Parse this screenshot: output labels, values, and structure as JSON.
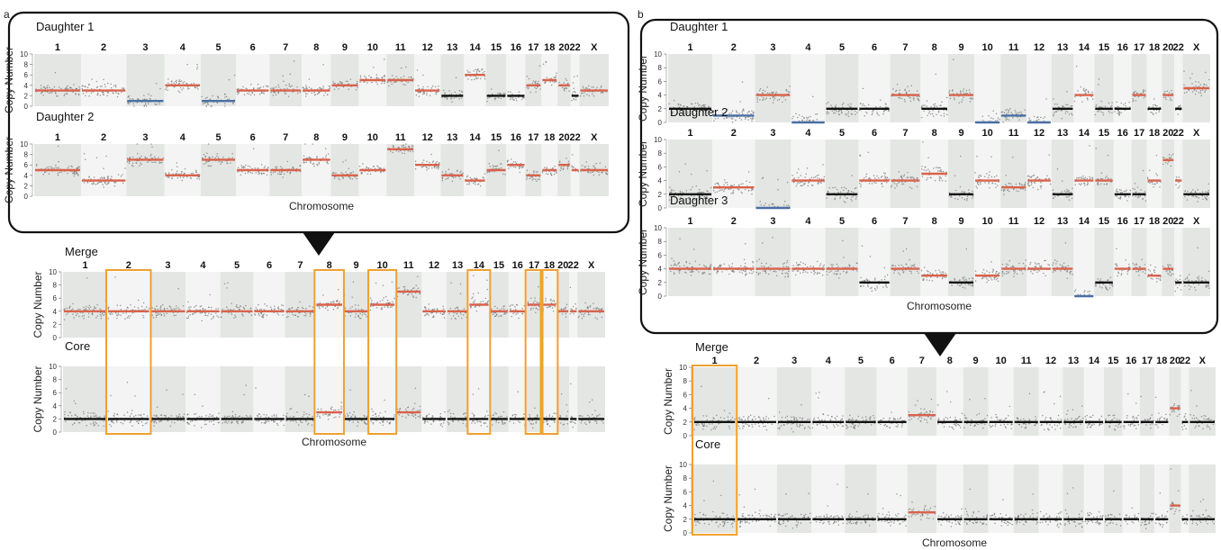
{
  "panels": {
    "a": "a",
    "b": "b"
  },
  "chart_data": {
    "type": "scatter",
    "ylim": [
      0,
      10
    ],
    "yticks": [
      0,
      2,
      4,
      6,
      8,
      10
    ],
    "ylabel": "Copy Number",
    "xlabel": "Chromosome",
    "colors": {
      "neutral": "#111111",
      "loss": "#4a6fa5",
      "gain": "#d9624b",
      "dot": "#777777",
      "highlight_box": "#f0a030",
      "callout_border": "#111111"
    },
    "chromosome_labels": [
      "1",
      "2",
      "3",
      "4",
      "5",
      "6",
      "7",
      "8",
      "9",
      "10",
      "11",
      "12",
      "13",
      "14",
      "15",
      "16",
      "17",
      "18",
      "20",
      "22",
      "X"
    ],
    "chromosome_widths": [
      1.6,
      1.55,
      1.3,
      1.25,
      1.2,
      1.15,
      1.1,
      1.0,
      0.95,
      0.95,
      0.95,
      0.9,
      0.8,
      0.75,
      0.7,
      0.65,
      0.55,
      0.55,
      0.45,
      0.3,
      1.0
    ],
    "charts": [
      {
        "id": "a",
        "upper": [
          {
            "name": "Daughter 1",
            "levels": [
              3,
              3,
              1,
              4,
              1,
              3,
              3,
              3,
              4,
              5,
              5,
              3,
              2,
              6,
              2,
              2,
              4,
              5,
              4,
              2,
              3
            ]
          },
          {
            "name": "Daughter 2",
            "levels": [
              5,
              3,
              7,
              4,
              7,
              5,
              5,
              7,
              4,
              5,
              9,
              6,
              4,
              3,
              5,
              6,
              4,
              5,
              6,
              5,
              5
            ]
          }
        ],
        "lower": [
          {
            "name": "Merge",
            "levels": [
              4,
              4,
              4,
              4,
              4,
              4,
              4,
              5,
              4,
              5,
              7,
              4,
              4,
              5,
              4,
              4,
              5,
              5,
              4,
              4,
              4
            ]
          },
          {
            "name": "Core",
            "levels": [
              2,
              2,
              2,
              2,
              2,
              2,
              2,
              3,
              2,
              2,
              3,
              2,
              2,
              2,
              2,
              2,
              2,
              2,
              2,
              2,
              2
            ]
          }
        ],
        "highlighted_chromosomes": [
          "2",
          "8",
          "10",
          "14",
          "17",
          "18"
        ]
      },
      {
        "id": "b",
        "upper": [
          {
            "name": "Daughter 1",
            "levels": [
              2,
              1,
              4,
              0,
              2,
              2,
              4,
              2,
              4,
              0,
              1,
              0,
              2,
              4,
              2,
              2,
              4,
              2,
              4,
              2,
              5
            ]
          },
          {
            "name": "Daughter 2",
            "levels": [
              2,
              3,
              0,
              4,
              2,
              4,
              4,
              5,
              2,
              4,
              3,
              4,
              2,
              4,
              4,
              2,
              2,
              4,
              7,
              4,
              2
            ]
          },
          {
            "name": "Daughter 3",
            "levels": [
              4,
              4,
              4,
              4,
              4,
              2,
              4,
              3,
              2,
              3,
              4,
              4,
              4,
              0,
              2,
              4,
              4,
              3,
              4,
              2,
              2
            ]
          }
        ],
        "lower": [
          {
            "name": "Merge",
            "levels": [
              2,
              2,
              2,
              2,
              2,
              2,
              3,
              2,
              2,
              2,
              2,
              2,
              2,
              2,
              2,
              2,
              2,
              2,
              4,
              2,
              2
            ]
          },
          {
            "name": "Core",
            "levels": [
              2,
              2,
              2,
              2,
              2,
              2,
              3,
              2,
              2,
              2,
              2,
              2,
              2,
              2,
              2,
              2,
              2,
              2,
              4,
              2,
              2
            ]
          }
        ],
        "highlighted_chromosomes": [
          "1"
        ]
      }
    ]
  }
}
